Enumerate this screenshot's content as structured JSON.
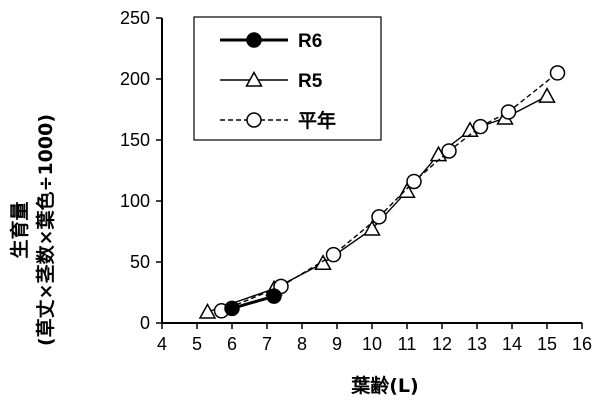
{
  "chart_data": {
    "type": "line",
    "title": "",
    "xlabel": "葉齢(L)",
    "ylabel_line1": "生育量",
    "ylabel_line2": "(草丈×茎数×葉色÷1000)",
    "xlim": [
      4,
      16
    ],
    "ylim": [
      0,
      250
    ],
    "xticks": [
      4,
      5,
      6,
      7,
      8,
      9,
      10,
      11,
      12,
      13,
      14,
      15,
      16
    ],
    "yticks": [
      0,
      50,
      100,
      150,
      200,
      250
    ],
    "grid": false,
    "legend_position": "top-left",
    "series": [
      {
        "name": "R6",
        "style": "solid-thick",
        "marker": "filled-circle",
        "color": "#000000",
        "points": [
          [
            6.0,
            12
          ],
          [
            7.2,
            22
          ]
        ]
      },
      {
        "name": "R5",
        "style": "solid-thin",
        "marker": "open-triangle",
        "color": "#000000",
        "points": [
          [
            5.3,
            9
          ],
          [
            7.2,
            28
          ],
          [
            8.6,
            49
          ],
          [
            10.0,
            77
          ],
          [
            11.0,
            108
          ],
          [
            11.9,
            138
          ],
          [
            12.8,
            158
          ],
          [
            13.8,
            168
          ],
          [
            15.0,
            186
          ]
        ]
      },
      {
        "name": "平年",
        "style": "dashed",
        "marker": "open-circle",
        "color": "#000000",
        "points": [
          [
            5.7,
            10
          ],
          [
            7.4,
            30
          ],
          [
            8.9,
            56
          ],
          [
            10.2,
            87
          ],
          [
            11.2,
            116
          ],
          [
            12.2,
            141
          ],
          [
            13.1,
            161
          ],
          [
            13.9,
            173
          ],
          [
            15.3,
            205
          ]
        ]
      }
    ]
  }
}
